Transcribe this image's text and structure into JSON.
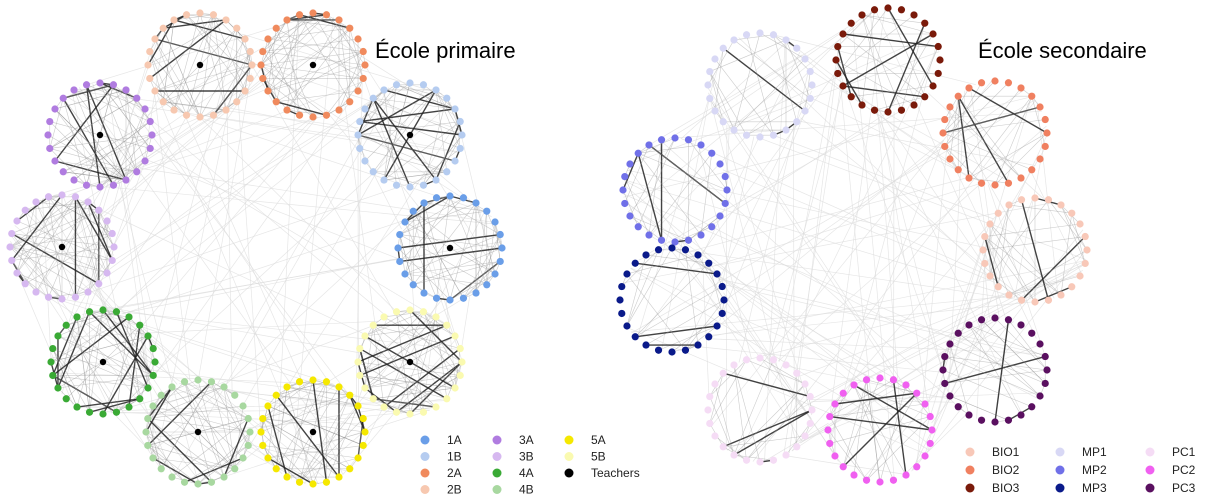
{
  "panels": [
    {
      "title": "École primaire",
      "legend": [
        {
          "label": "1A",
          "color": "#6a9ee8"
        },
        {
          "label": "1B",
          "color": "#b5ccf0"
        },
        {
          "label": "2A",
          "color": "#f08a5d"
        },
        {
          "label": "2B",
          "color": "#f7c8b0"
        },
        {
          "label": "3A",
          "color": "#b07ce0"
        },
        {
          "label": "3B",
          "color": "#d6b8f0"
        },
        {
          "label": "4A",
          "color": "#3aaa35"
        },
        {
          "label": "4B",
          "color": "#a8d8a0"
        },
        {
          "label": "5A",
          "color": "#f5e800"
        },
        {
          "label": "5B",
          "color": "#fafab0"
        },
        {
          "label": "Teachers",
          "color": "#000000"
        }
      ]
    },
    {
      "title": "École secondaire",
      "legend": [
        {
          "label": "BIO1",
          "color": "#f8c8b8"
        },
        {
          "label": "BIO2",
          "color": "#f08060"
        },
        {
          "label": "BIO3",
          "color": "#7a1a0a"
        },
        {
          "label": "MP1",
          "color": "#d8d8f5"
        },
        {
          "label": "MP2",
          "color": "#7070e8"
        },
        {
          "label": "MP3",
          "color": "#0a1a8a"
        },
        {
          "label": "PC1",
          "color": "#f5dcf5"
        },
        {
          "label": "PC2",
          "color": "#f060f0"
        },
        {
          "label": "PC3",
          "color": "#5a1060"
        }
      ]
    }
  ]
}
